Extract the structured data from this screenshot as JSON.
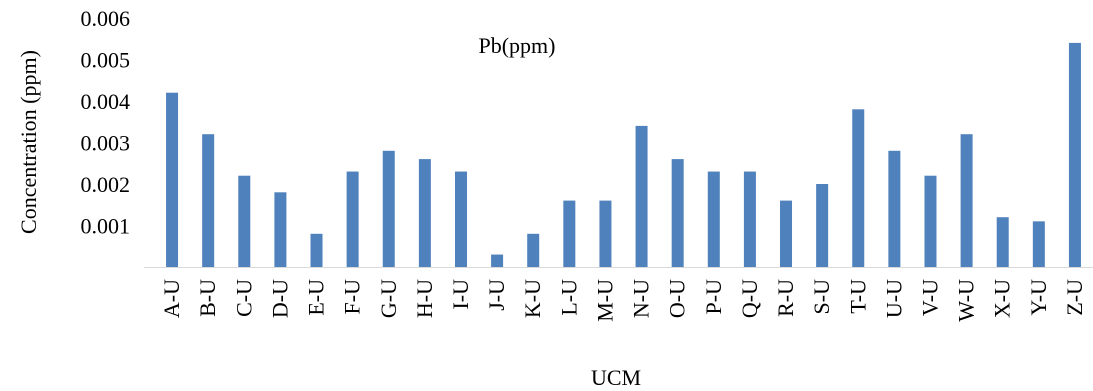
{
  "chart_data": {
    "type": "bar",
    "title": "Pb(ppm)",
    "xlabel": "UCM",
    "ylabel": "Concentration (ppm)",
    "ylim": [
      0,
      0.006
    ],
    "yticks": [
      "0.001",
      "0.002",
      "0.003",
      "0.004",
      "0.005",
      "0.006"
    ],
    "grid": false,
    "categories": [
      "A-U",
      "B-U",
      "C-U",
      "D-U",
      "E-U",
      "F-U",
      "G-U",
      "H-U",
      "I-U",
      "J-U",
      "K-U",
      "L-U",
      "M-U",
      "N-U",
      "O-U",
      "P-U",
      "Q-U",
      "R-U",
      "S-U",
      "T-U",
      "U-U",
      "V-U",
      "W-U",
      "X-U",
      "Y-U",
      "Z-U"
    ],
    "series": [
      {
        "values": [
          0.0042,
          0.0032,
          0.0022,
          0.0018,
          0.0008,
          0.0023,
          0.0028,
          0.0026,
          0.0023,
          0.0003,
          0.0008,
          0.0016,
          0.0016,
          0.0034,
          0.0026,
          0.0023,
          0.0023,
          0.0016,
          0.002,
          0.0038,
          0.0028,
          0.0022,
          0.0032,
          0.0012,
          0.0011,
          0.0054
        ],
        "color": "#4f81bd"
      }
    ]
  }
}
